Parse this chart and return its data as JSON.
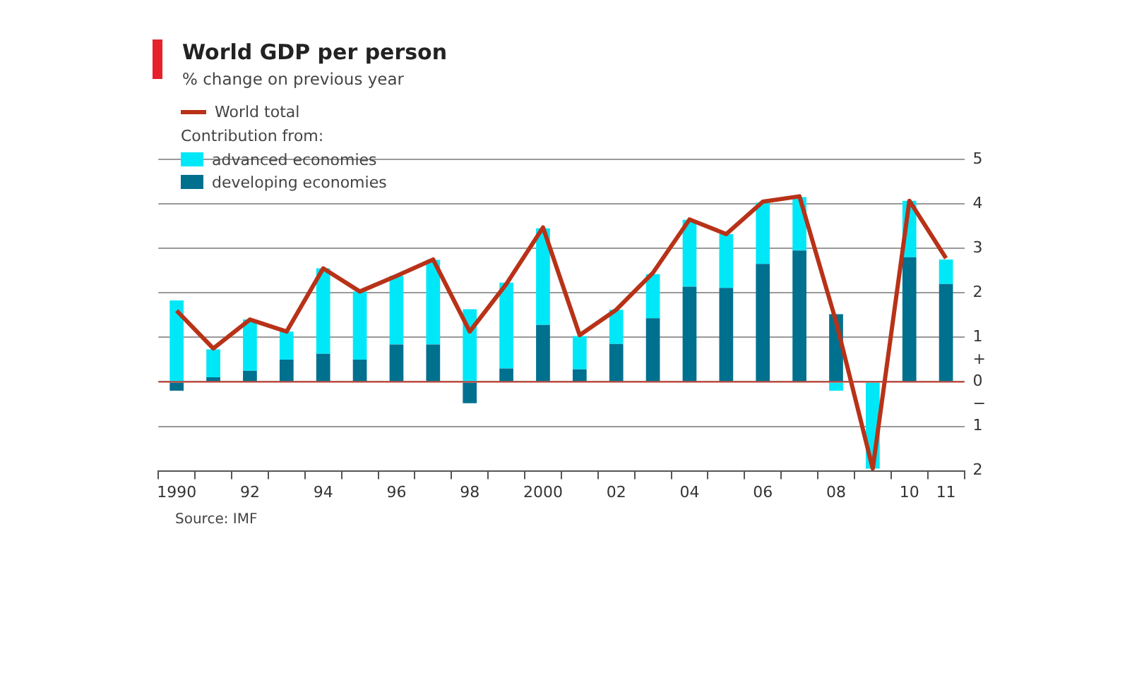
{
  "chart_data": {
    "type": "bar",
    "title": "World GDP per person",
    "subtitle": "% change on previous year",
    "legend_title": "Contribution from:",
    "categories": [
      "1990",
      null,
      "92",
      null,
      "94",
      null,
      "96",
      null,
      "98",
      null,
      "2000",
      null,
      "02",
      null,
      "04",
      null,
      "06",
      null,
      "08",
      null,
      "10",
      "11"
    ],
    "series": [
      {
        "name": "developing economies",
        "color": "#00708f",
        "values": [
          -0.2,
          0.1,
          0.25,
          0.5,
          0.63,
          0.5,
          0.84,
          0.84,
          -0.48,
          0.3,
          1.28,
          0.28,
          0.85,
          1.43,
          2.14,
          2.11,
          2.65,
          2.95,
          1.52,
          null,
          2.8,
          2.2
        ]
      },
      {
        "name": "advanced economies",
        "color": "#00e8f8",
        "values": [
          1.83,
          0.63,
          1.15,
          0.63,
          1.92,
          1.53,
          1.54,
          1.9,
          1.63,
          1.93,
          2.17,
          0.75,
          0.77,
          0.99,
          1.5,
          1.21,
          1.38,
          1.2,
          -0.2,
          -1.95,
          1.27,
          0.55
        ]
      },
      {
        "name": "World total",
        "type": "line",
        "color": "#b83218",
        "values": [
          1.6,
          0.75,
          1.4,
          1.13,
          2.55,
          2.03,
          2.38,
          2.75,
          1.13,
          2.2,
          3.47,
          1.05,
          1.62,
          2.45,
          3.65,
          3.32,
          4.05,
          4.17,
          1.35,
          -1.95,
          4.07,
          2.78
        ]
      }
    ],
    "stacked": true,
    "ylim": [
      -2,
      5
    ],
    "yticks": [
      {
        "value": -2,
        "label": "2"
      },
      {
        "value": -1,
        "label": "1"
      },
      {
        "value": -0.5,
        "label": "−"
      },
      0,
      {
        "value": 0.5,
        "label": "+"
      },
      1,
      2,
      3,
      4,
      5
    ],
    "ref_lines": [
      {
        "axis": "y",
        "value": 0,
        "color": "#c0392b"
      }
    ],
    "grid": "y",
    "legend": "top left",
    "marker": "none",
    "line_style": "solid",
    "annotations": [
      "Source: IMF"
    ]
  }
}
